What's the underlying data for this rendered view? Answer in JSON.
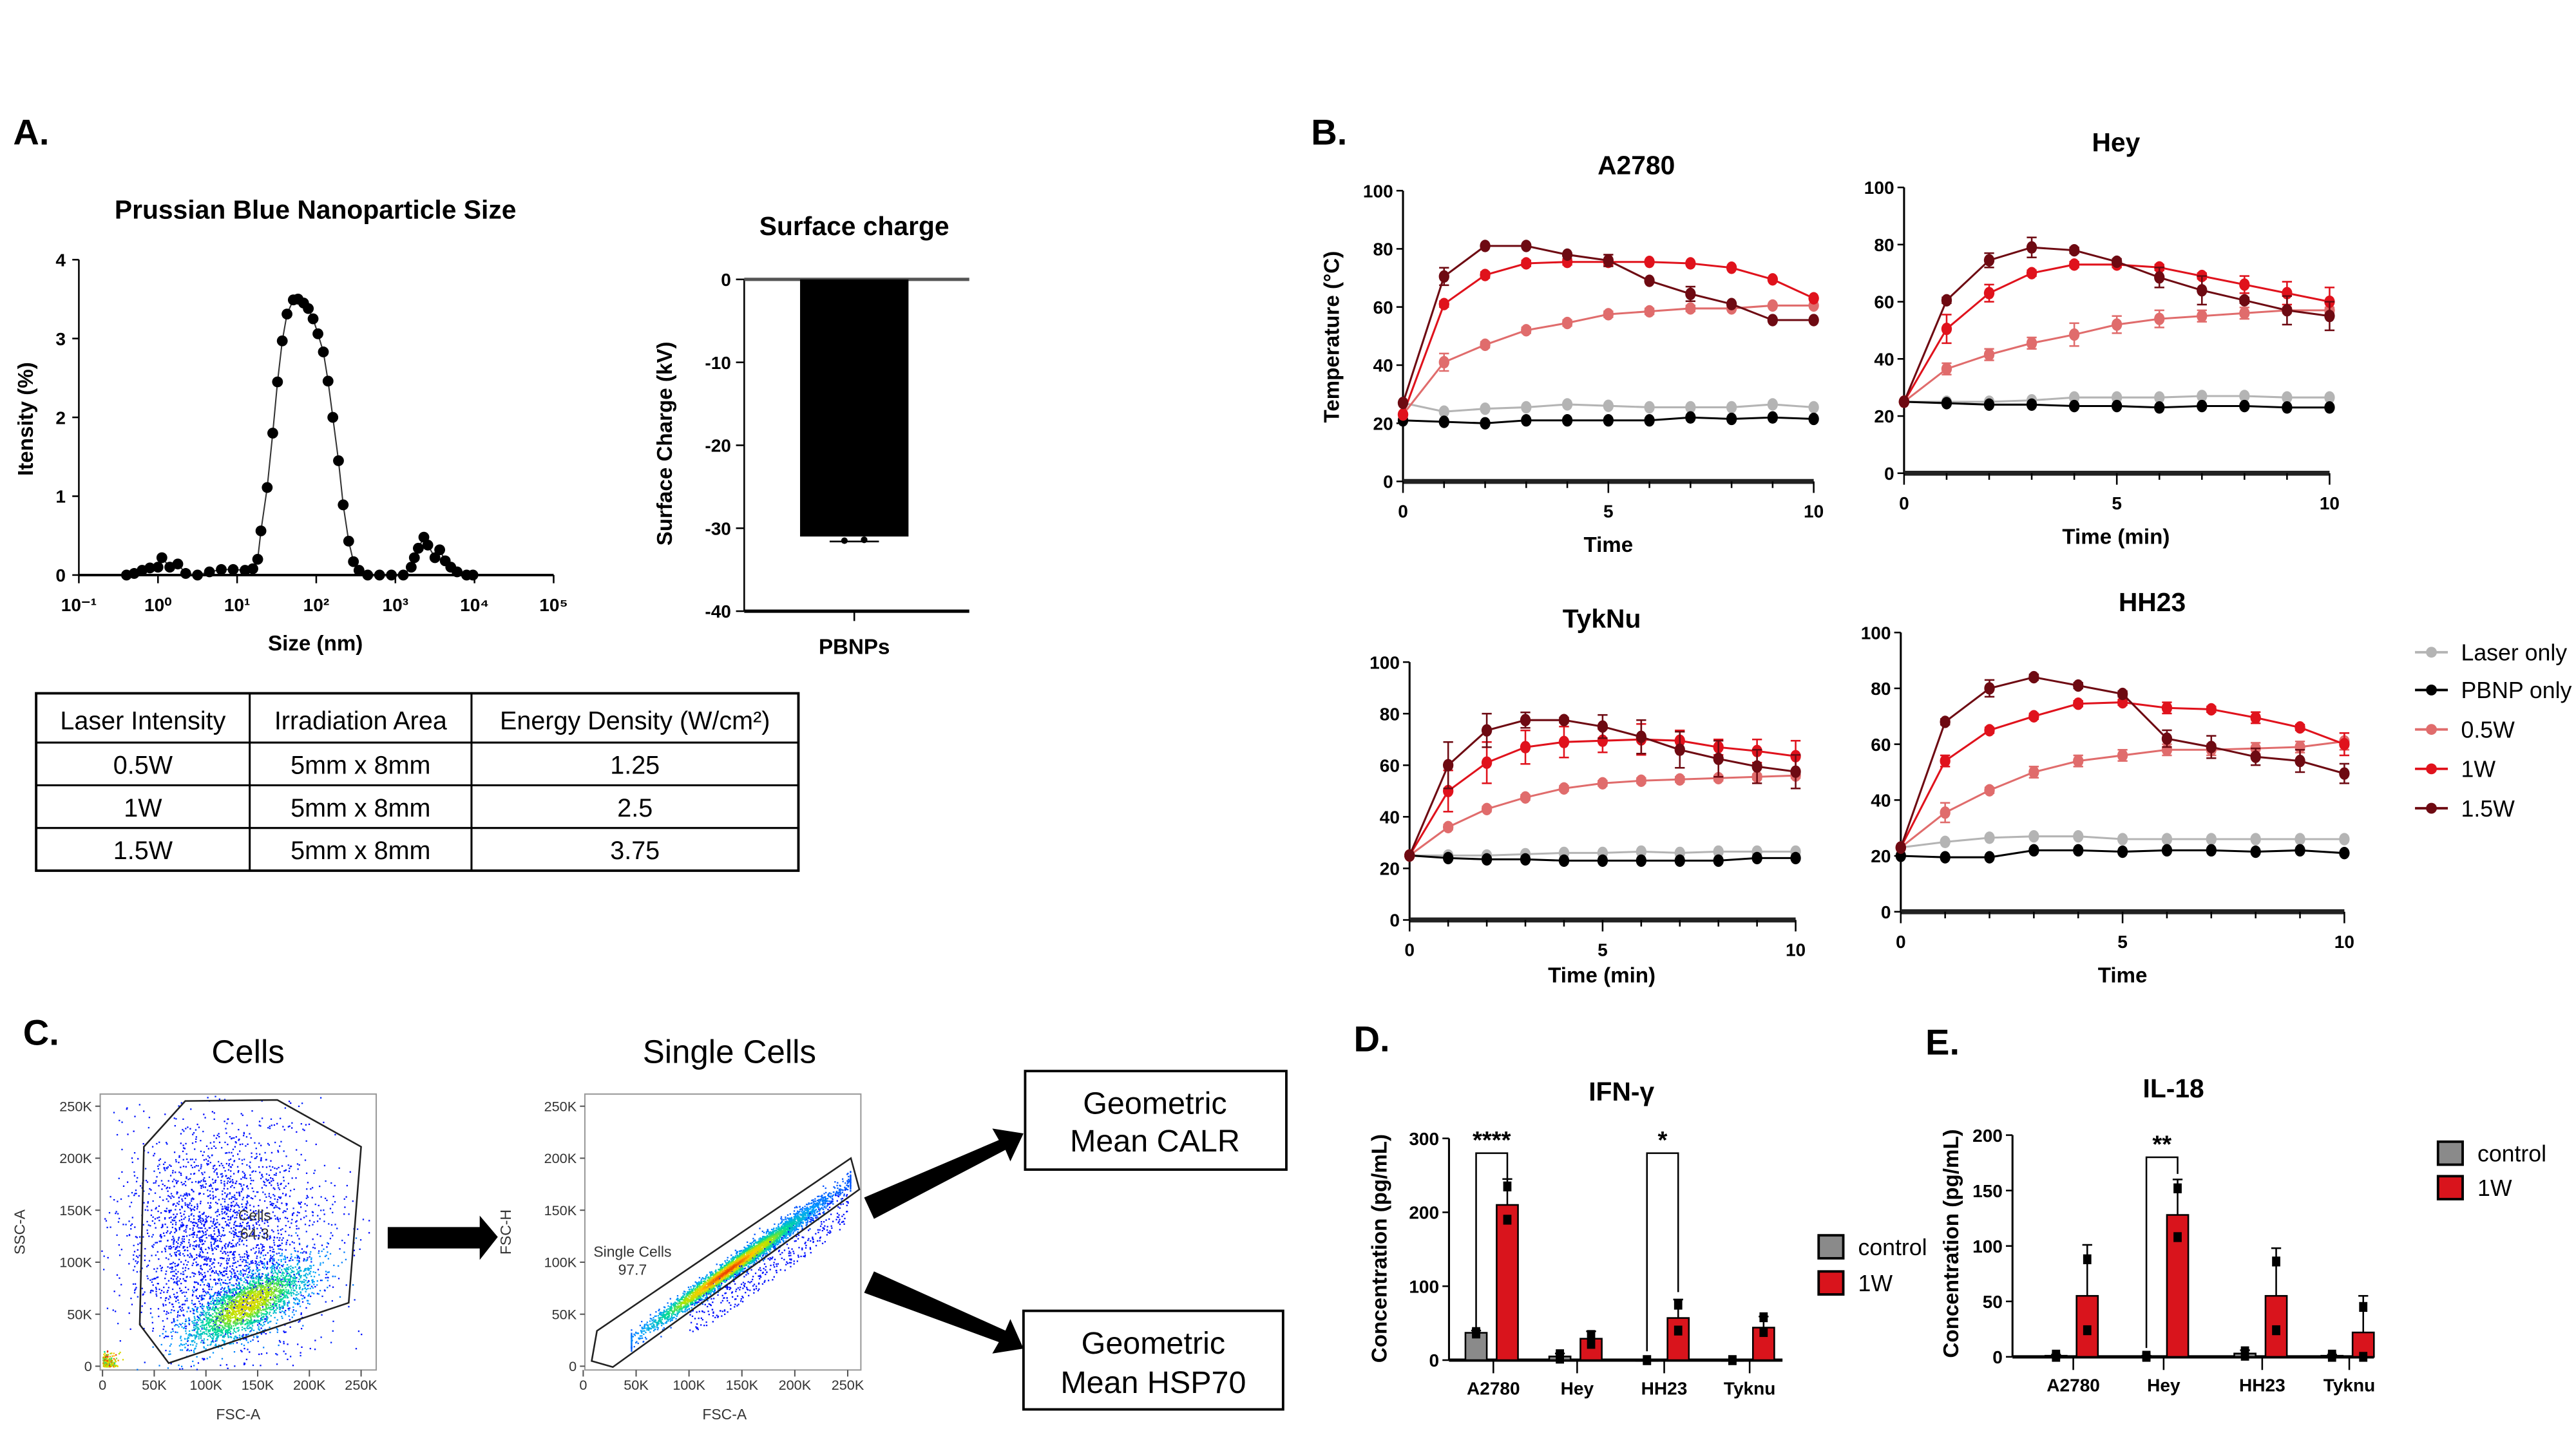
{
  "panel_labels": {
    "a": "A.",
    "b": "B.",
    "c": "C.",
    "d": "D.",
    "e": "E."
  },
  "table": {
    "headers": [
      "Laser Intensity",
      "Irradiation Area",
      "Energy Density (W/cm²)"
    ],
    "rows": [
      [
        "0.5W",
        "5mm x 8mm",
        "1.25"
      ],
      [
        "1W",
        "5mm x 8mm",
        "2.5"
      ],
      [
        "1.5W",
        "5mm x 8mm",
        "3.75"
      ]
    ]
  },
  "flow": {
    "plot1": {
      "title": "Cells",
      "xlabel": "FSC-A",
      "ylabel": "SSC-A",
      "gate_name": "Cells",
      "gate_value": "64.3"
    },
    "plot2": {
      "title": "Single Cells",
      "xlabel": "FSC-A",
      "ylabel": "FSC-H",
      "gate_name": "Single Cells",
      "gate_value": "97.7"
    },
    "ticks": [
      "0",
      "50K",
      "100K",
      "150K",
      "200K",
      "250K"
    ],
    "outputs": [
      "Geometric",
      "Mean CALR",
      "Geometric",
      "Mean HSP70"
    ]
  },
  "chart_data": [
    {
      "type": "line",
      "title": "Prussian Blue Nanoparticle Size",
      "xlabel": "Size (nm)",
      "ylabel": "Itensity (%)",
      "xscale": "log",
      "xlim": [
        0.1,
        100000
      ],
      "ylim": [
        0,
        4
      ],
      "xticks": [
        "10⁻¹",
        "10⁰",
        "10¹",
        "10²",
        "10³",
        "10⁴",
        "10⁵"
      ],
      "yticks": [
        "0",
        "1",
        "2",
        "3",
        "4"
      ],
      "x": [
        0.4,
        0.5,
        0.63,
        0.79,
        1.0,
        1.12,
        1.41,
        1.78,
        2.24,
        3.16,
        4.47,
        6.31,
        8.91,
        12.6,
        15.8,
        18.2,
        20,
        24,
        28.2,
        32.4,
        37.2,
        42.7,
        51.3,
        58.9,
        69.2,
        79.4,
        91.2,
        105,
        123,
        141,
        162,
        191,
        219,
        257,
        295,
        347,
        447,
        631,
        891,
        1259,
        1585,
        1738,
        1950,
        2291,
        2570,
        3162,
        3631,
        4266,
        5012,
        6026,
        7943,
        9550
      ],
      "y": [
        0,
        0.02,
        0.06,
        0.09,
        0.1,
        0.22,
        0.1,
        0.14,
        0.02,
        0,
        0.04,
        0.07,
        0.07,
        0.06,
        0.08,
        0.2,
        0.56,
        1.11,
        1.8,
        2.45,
        2.97,
        3.31,
        3.49,
        3.5,
        3.45,
        3.38,
        3.25,
        3.06,
        2.83,
        2.46,
        2.0,
        1.45,
        0.89,
        0.43,
        0.17,
        0.06,
        0,
        0,
        0,
        0,
        0.1,
        0.22,
        0.34,
        0.48,
        0.38,
        0.22,
        0.32,
        0.18,
        0.1,
        0.04,
        0,
        0
      ]
    },
    {
      "type": "bar",
      "title": "Surface charge",
      "ylabel": "Surface Charge (kV)",
      "categories": [
        "PBNPs"
      ],
      "values": [
        -31
      ],
      "error": [
        0.6
      ],
      "points": [
        -31.5,
        -31.4
      ],
      "ylim": [
        -40,
        0
      ],
      "yticks": [
        "0",
        "-10",
        "-20",
        "-30",
        "-40"
      ]
    },
    {
      "type": "line",
      "title": "A2780",
      "xlabel": "Time",
      "ylabel": "Temperature (°C)",
      "xlim": [
        0,
        10
      ],
      "ylim": [
        0,
        100
      ],
      "xticks": [
        "0",
        "5",
        "10"
      ],
      "yticks": [
        "0",
        "20",
        "40",
        "60",
        "80",
        "100"
      ],
      "x": [
        0,
        1,
        2,
        3,
        4,
        5,
        6,
        7,
        8,
        9,
        10
      ],
      "series": [
        {
          "name": "Laser only",
          "values": [
            27,
            24,
            25,
            25.5,
            26.5,
            26,
            25.5,
            25.5,
            25.5,
            26.5,
            25.5
          ],
          "err": [
            0,
            0,
            0,
            0,
            0,
            0,
            0,
            0,
            0,
            0,
            0
          ]
        },
        {
          "name": "PBNP only",
          "values": [
            21,
            20.5,
            20,
            21,
            21,
            21,
            21,
            22,
            21.5,
            22,
            21.5
          ],
          "err": [
            0,
            0,
            0,
            0,
            0,
            0,
            0,
            0,
            0,
            0,
            0
          ]
        },
        {
          "name": "0.5W",
          "values": [
            23,
            41,
            47,
            52,
            54.5,
            57.5,
            58.5,
            59.5,
            59.5,
            60.5,
            60.5
          ],
          "err": [
            0,
            3,
            1,
            1,
            1,
            1,
            1,
            1,
            0,
            0,
            0
          ]
        },
        {
          "name": "1W",
          "values": [
            23,
            61,
            71,
            75,
            75.5,
            75.5,
            75.5,
            75,
            73.5,
            69.5,
            63
          ],
          "err": [
            0,
            1,
            1,
            1,
            1,
            1,
            0,
            0,
            0,
            0,
            0
          ]
        },
        {
          "name": "1.5W",
          "values": [
            27,
            70.5,
            81,
            81,
            78,
            76,
            69,
            64.5,
            61,
            55.5,
            55.5
          ],
          "err": [
            0,
            3,
            0,
            0,
            0,
            2,
            0,
            2.5,
            0,
            0,
            0
          ]
        }
      ]
    },
    {
      "type": "line",
      "title": "Hey",
      "xlabel": "Time (min)",
      "xlim": [
        0,
        10
      ],
      "ylim": [
        0,
        100
      ],
      "xticks": [
        "0",
        "5",
        "10"
      ],
      "yticks": [
        "0",
        "20",
        "40",
        "60",
        "80",
        "100"
      ],
      "x": [
        0,
        1,
        2,
        3,
        4,
        5,
        6,
        7,
        8,
        9,
        10
      ],
      "series": [
        {
          "name": "Laser only",
          "values": [
            25,
            25,
            25,
            25.5,
            26.5,
            26.5,
            26.5,
            27,
            27,
            26.5,
            26.5
          ],
          "err": [
            0,
            0,
            0,
            0,
            0,
            0,
            0,
            0,
            0,
            0,
            0
          ]
        },
        {
          "name": "PBNP only",
          "values": [
            25,
            24.5,
            24,
            24,
            23.5,
            23.5,
            23,
            23.5,
            23.5,
            23,
            23
          ],
          "err": [
            0,
            0,
            0,
            0,
            0,
            0,
            0,
            0,
            0,
            0,
            0
          ]
        },
        {
          "name": "0.5W",
          "values": [
            25,
            36.5,
            41.5,
            45.5,
            48.5,
            52,
            54,
            55,
            56,
            57,
            57
          ],
          "err": [
            0,
            2,
            2,
            2,
            4,
            3,
            3,
            2,
            2,
            1,
            1
          ]
        },
        {
          "name": "1W",
          "values": [
            25,
            50.5,
            63,
            70,
            73,
            73,
            72,
            69,
            66,
            63,
            60
          ],
          "err": [
            0,
            5,
            3,
            1,
            1,
            1,
            1,
            1,
            3,
            4,
            5
          ]
        },
        {
          "name": "1.5W",
          "values": [
            25,
            60.5,
            74.5,
            79,
            78,
            74,
            68.5,
            64,
            60.5,
            57,
            55
          ],
          "err": [
            0,
            1,
            2.5,
            3.5,
            1,
            1,
            3.5,
            5,
            1,
            5,
            5
          ]
        }
      ]
    },
    {
      "type": "line",
      "title": "TykNu",
      "xlabel": "Time (min)",
      "xlim": [
        0,
        10
      ],
      "ylim": [
        0,
        100
      ],
      "xticks": [
        "0",
        "5",
        "10"
      ],
      "yticks": [
        "0",
        "20",
        "40",
        "60",
        "80",
        "100"
      ],
      "x": [
        0,
        1,
        2,
        3,
        4,
        5,
        6,
        7,
        8,
        9,
        10
      ],
      "series": [
        {
          "name": "Laser only",
          "values": [
            25,
            25,
            25,
            25.5,
            26,
            26,
            26.5,
            26,
            26.5,
            26.5,
            26.5
          ],
          "err": [
            0,
            0,
            0,
            0,
            0,
            0,
            0,
            0,
            0,
            0,
            0
          ]
        },
        {
          "name": "PBNP only",
          "values": [
            25,
            24,
            23.5,
            23.5,
            23,
            23,
            23,
            23,
            23,
            24,
            24
          ],
          "err": [
            0,
            0,
            0,
            0,
            0,
            0,
            0,
            0,
            0,
            0,
            0
          ]
        },
        {
          "name": "0.5W",
          "values": [
            25,
            36,
            43,
            47.5,
            51,
            53,
            54,
            54.5,
            55,
            55.5,
            56
          ],
          "err": [
            0,
            1,
            1,
            1,
            1,
            1,
            1,
            1,
            1,
            1,
            1
          ]
        },
        {
          "name": "1W",
          "values": [
            25,
            50,
            61,
            67,
            69,
            69.5,
            70,
            69.5,
            67,
            65.5,
            63.5
          ],
          "err": [
            0,
            8,
            8,
            6.5,
            6,
            4.5,
            6,
            4,
            3,
            4.5,
            6
          ]
        },
        {
          "name": "1.5W",
          "values": [
            25,
            60,
            73.5,
            77.5,
            77.5,
            75,
            71,
            66,
            62.5,
            59.5,
            57.5
          ],
          "err": [
            0,
            9,
            6.5,
            3,
            1,
            4.5,
            6.5,
            7,
            7,
            6.5,
            6.5
          ]
        }
      ]
    },
    {
      "type": "line",
      "title": "HH23",
      "xlabel": "Time",
      "xlim": [
        0,
        10
      ],
      "ylim": [
        0,
        100
      ],
      "xticks": [
        "0",
        "5",
        "10"
      ],
      "yticks": [
        "0",
        "20",
        "40",
        "60",
        "80",
        "100"
      ],
      "x": [
        0,
        1,
        2,
        3,
        4,
        5,
        6,
        7,
        8,
        9,
        10
      ],
      "series": [
        {
          "name": "Laser only",
          "values": [
            23,
            25,
            26.5,
            27,
            27,
            26,
            26,
            26,
            26,
            26,
            26
          ],
          "err": [
            0,
            0,
            0,
            0,
            0,
            0,
            0,
            0,
            0,
            0,
            0
          ]
        },
        {
          "name": "PBNP only",
          "values": [
            20,
            19.5,
            19.5,
            22,
            22,
            21.5,
            22,
            22,
            21.5,
            22,
            21
          ],
          "err": [
            0,
            0,
            0,
            0,
            0,
            0,
            0,
            0,
            0,
            0,
            0
          ]
        },
        {
          "name": "0.5W",
          "values": [
            23,
            35.5,
            43.5,
            50,
            54,
            56,
            58,
            58,
            58.5,
            59,
            61
          ],
          "err": [
            0,
            3.5,
            1,
            2,
            2,
            2,
            2,
            2,
            2,
            2,
            3
          ]
        },
        {
          "name": "1W",
          "values": [
            23,
            54,
            65,
            70,
            74.5,
            75,
            73,
            72.5,
            69.5,
            66,
            60
          ],
          "err": [
            0,
            2,
            1,
            1,
            1,
            1,
            2,
            1,
            2,
            1,
            4
          ]
        },
        {
          "name": "1.5W",
          "values": [
            23,
            68,
            80,
            84,
            81,
            78,
            62,
            59,
            55.5,
            54,
            49.5
          ],
          "err": [
            0,
            1,
            3,
            1,
            1,
            1,
            3,
            4,
            3,
            4,
            3.5
          ]
        }
      ],
      "legend": {
        "position": "right",
        "entries": [
          "Laser only",
          "PBNP only",
          "0.5W",
          "1W",
          "1.5W"
        ]
      }
    },
    {
      "type": "bar",
      "title": "IFN-γ",
      "ylabel": "Concentration (pg/mL)",
      "categories": [
        "A2780",
        "Hey",
        "HH23",
        "Tyknu"
      ],
      "ylim": [
        0,
        300
      ],
      "yticks": [
        "0",
        "100",
        "200",
        "300"
      ],
      "series": [
        {
          "name": "control",
          "values": [
            37,
            5,
            0,
            0
          ],
          "err": [
            3,
            4,
            0,
            0
          ],
          "points": [
            [
              38,
              36
            ],
            [
              8,
              2
            ],
            [
              0,
              0
            ],
            [
              0,
              0
            ]
          ]
        },
        {
          "name": "1W",
          "values": [
            210,
            29,
            57,
            44
          ],
          "err": [
            35,
            10,
            25,
            15
          ],
          "points": [
            [
              235,
              190
            ],
            [
              34,
              22
            ],
            [
              75,
              40
            ],
            [
              58,
              38
            ]
          ]
        }
      ],
      "significance": [
        {
          "category": "A2780",
          "label": "****"
        },
        {
          "category": "HH23",
          "label": "*"
        }
      ],
      "legend": {
        "position": "right",
        "entries": [
          "control",
          "1W"
        ]
      }
    },
    {
      "type": "bar",
      "title": "IL-18",
      "ylabel": "Concentration (pg/mL)",
      "categories": [
        "A2780",
        "Hey",
        "HH23",
        "Tyknu"
      ],
      "ylim": [
        0,
        200
      ],
      "yticks": [
        "0",
        "50",
        "100",
        "150",
        "200"
      ],
      "series": [
        {
          "name": "control",
          "values": [
            1,
            0,
            3,
            1
          ],
          "err": [
            1,
            1,
            3,
            1
          ],
          "points": [
            [
              2,
              0
            ],
            [
              1,
              0
            ],
            [
              5,
              1
            ],
            [
              2,
              0
            ]
          ]
        },
        {
          "name": "1W",
          "values": [
            55,
            128,
            55,
            22
          ],
          "err": [
            46,
            32,
            43,
            33
          ],
          "points": [
            [
              88,
              24
            ],
            [
              152,
              108
            ],
            [
              86,
              24
            ],
            [
              45,
              0
            ]
          ]
        }
      ],
      "significance": [
        {
          "category": "Hey",
          "label": "**"
        }
      ],
      "legend": {
        "position": "top-right",
        "entries": [
          "control",
          "1W"
        ]
      }
    }
  ],
  "colors": {
    "Laser only": "#b4b4b4",
    "PBNP only": "#000000",
    "0.5W": "#e06c6c",
    "1W": "#e0121c",
    "1.5W": "#6e0a12",
    "control": "#8a8a8a",
    "bar_1W": "#d9141c",
    "surface_bar": "#000000"
  }
}
